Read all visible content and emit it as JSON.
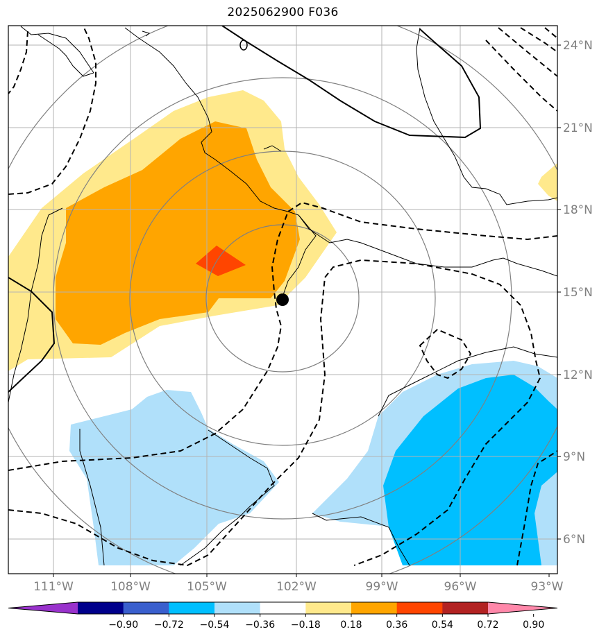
{
  "title": "2025062900 F036",
  "map": {
    "lon_range": [
      -112.1,
      -93.0
    ],
    "lat_range": [
      4.9,
      24.9
    ],
    "lat_ticks": [
      {
        "value": 24,
        "label": "24°N"
      },
      {
        "value": 21,
        "label": "21°N"
      },
      {
        "value": 18,
        "label": "18°N"
      },
      {
        "value": 15,
        "label": "15°N"
      },
      {
        "value": 12,
        "label": "12°N"
      },
      {
        "value": 9,
        "label": "9°N"
      },
      {
        "value": 6,
        "label": "6°N"
      }
    ],
    "lon_ticks": [
      {
        "value": -111,
        "label": "111°W"
      },
      {
        "value": -108,
        "label": "108°W"
      },
      {
        "value": -105,
        "label": "105°W"
      },
      {
        "value": -102,
        "label": "102°W"
      },
      {
        "value": -99,
        "label": "99°W"
      },
      {
        "value": -96,
        "label": "96°W"
      },
      {
        "value": -93,
        "label": "93°W"
      }
    ],
    "storm_center": {
      "lon": -102.6,
      "lat": 14.7
    },
    "range_rings_deg": [
      3,
      6,
      9,
      12
    ],
    "grid": true
  },
  "colorbar": {
    "ticks": [
      "−0.90",
      "−0.72",
      "−0.54",
      "−0.36",
      "−0.18",
      "0.18",
      "0.36",
      "0.54",
      "0.72",
      "0.90"
    ],
    "colors": [
      "#9932cc",
      "#00008b",
      "#3a5fcd",
      "#00bfff",
      "#b0e0fa",
      "#ffffff",
      "#ffe98c",
      "#ffa500",
      "#ff4500",
      "#b22222",
      "#ff88aa"
    ]
  }
}
